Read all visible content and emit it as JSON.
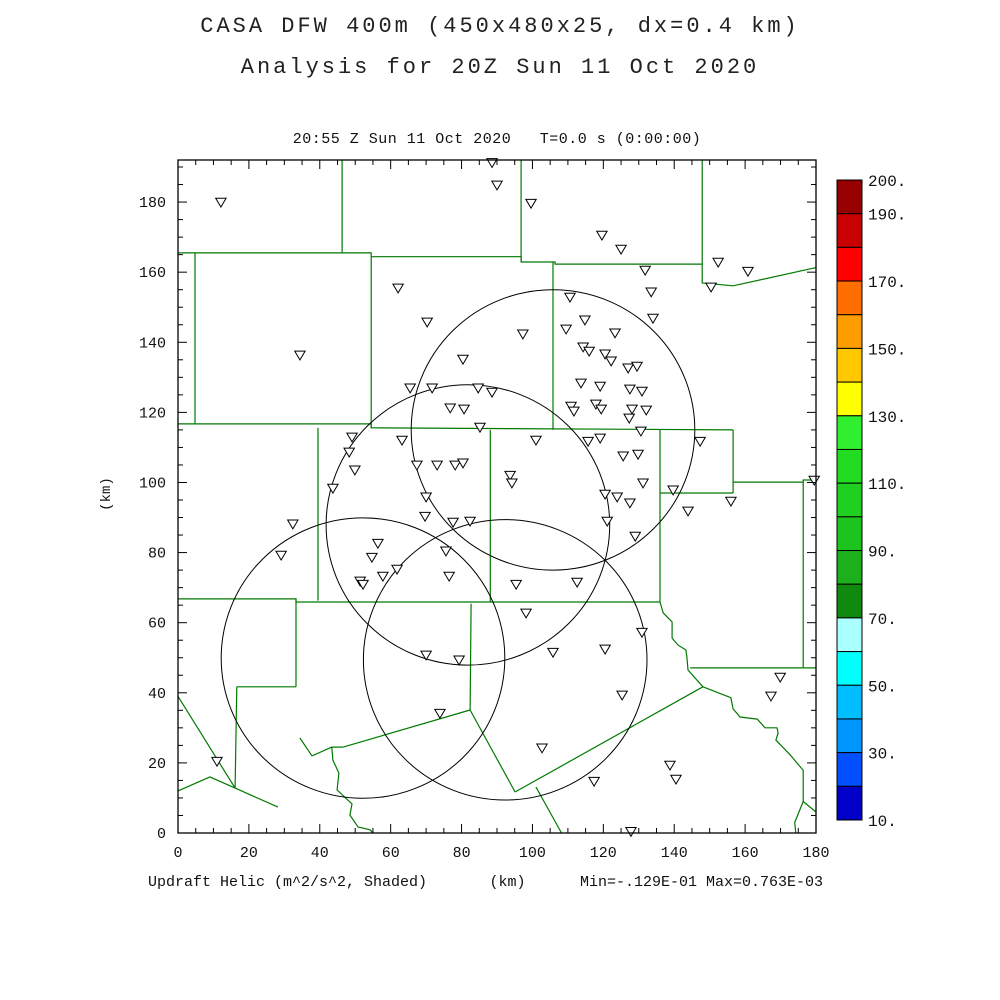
{
  "header": {
    "title_line1": "CASA DFW 400m (450x480x25, dx=0.4 km)",
    "title_line2": "Analysis for 20Z Sun 11 Oct 2020"
  },
  "plot": {
    "subtitle": "20:55 Z Sun 11 Oct 2020   T=0.0 s (0:00:00)",
    "y_axis_title": "(km)",
    "x_axis_title": "(km)",
    "footer_left": "Updraft Helic (m^2/s^2, Shaded)",
    "footer_right": "Min=-.129E-01 Max=0.763E-03"
  },
  "chart_data": {
    "type": "scatter",
    "title": "20:55 Z Sun 11 Oct 2020   T=0.0 s (0:00:00)",
    "xlabel": "(km)",
    "ylabel": "(km)",
    "x_range": [
      0,
      180
    ],
    "y_range": [
      0,
      192
    ],
    "x_ticks": [
      0,
      20,
      40,
      60,
      80,
      100,
      120,
      140,
      160,
      180
    ],
    "y_ticks": [
      0,
      20,
      40,
      60,
      80,
      100,
      120,
      140,
      160,
      180
    ],
    "minor_tick_step": 5,
    "grid": false,
    "field_shaded": "Updraft Helicity (m^2/s^2)",
    "field_min": "-.129E-01",
    "field_max": "0.763E-03",
    "marker_symbol": "open-down-triangle",
    "marker_color": "#000000",
    "markers_km": [
      [
        12.1,
        180.0
      ],
      [
        34.4,
        136.4
      ],
      [
        62.1,
        155.5
      ],
      [
        70.3,
        145.8
      ],
      [
        80.4,
        135.2
      ],
      [
        65.5,
        127.0
      ],
      [
        71.7,
        127.0
      ],
      [
        76.8,
        121.3
      ],
      [
        80.7,
        121.0
      ],
      [
        84.7,
        127.0
      ],
      [
        88.6,
        125.8
      ],
      [
        85.2,
        115.8
      ],
      [
        49.1,
        113.0
      ],
      [
        63.2,
        112.1
      ],
      [
        48.3,
        108.7
      ],
      [
        49.9,
        103.6
      ],
      [
        43.7,
        98.4
      ],
      [
        67.4,
        105.0
      ],
      [
        73.1,
        105.0
      ],
      [
        78.2,
        105.0
      ],
      [
        80.4,
        105.6
      ],
      [
        70.0,
        95.9
      ],
      [
        69.7,
        90.4
      ],
      [
        32.4,
        88.2
      ],
      [
        29.1,
        79.3
      ],
      [
        77.6,
        88.7
      ],
      [
        82.4,
        89.0
      ],
      [
        56.4,
        82.7
      ],
      [
        54.7,
        78.7
      ],
      [
        57.8,
        73.3
      ],
      [
        61.8,
        75.3
      ],
      [
        51.4,
        71.9
      ],
      [
        52.2,
        71.0
      ],
      [
        75.6,
        80.5
      ],
      [
        76.5,
        73.3
      ],
      [
        70.0,
        50.8
      ],
      [
        79.3,
        49.4
      ],
      [
        73.9,
        34.2
      ],
      [
        11.0,
        20.5
      ],
      [
        88.6,
        191.3
      ],
      [
        90.0,
        184.9
      ],
      [
        99.6,
        179.7
      ],
      [
        119.6,
        170.6
      ],
      [
        125.0,
        166.6
      ],
      [
        131.8,
        160.6
      ],
      [
        152.4,
        162.9
      ],
      [
        160.8,
        160.3
      ],
      [
        150.4,
        155.8
      ],
      [
        133.5,
        154.4
      ],
      [
        134.0,
        146.9
      ],
      [
        110.6,
        152.9
      ],
      [
        97.3,
        142.4
      ],
      [
        109.5,
        143.8
      ],
      [
        114.8,
        146.4
      ],
      [
        123.3,
        142.7
      ],
      [
        114.3,
        138.7
      ],
      [
        116.0,
        137.5
      ],
      [
        120.5,
        136.7
      ],
      [
        122.2,
        134.7
      ],
      [
        127.0,
        132.7
      ],
      [
        129.5,
        133.2
      ],
      [
        113.7,
        128.4
      ],
      [
        119.1,
        127.5
      ],
      [
        127.5,
        126.7
      ],
      [
        130.9,
        126.1
      ],
      [
        110.9,
        121.8
      ],
      [
        111.7,
        120.4
      ],
      [
        117.9,
        122.4
      ],
      [
        119.4,
        121.0
      ],
      [
        128.1,
        121.0
      ],
      [
        132.1,
        120.7
      ],
      [
        127.3,
        118.4
      ],
      [
        130.6,
        114.7
      ],
      [
        101.0,
        112.1
      ],
      [
        115.7,
        111.8
      ],
      [
        119.1,
        112.7
      ],
      [
        125.6,
        107.6
      ],
      [
        129.8,
        108.1
      ],
      [
        147.3,
        111.8
      ],
      [
        131.2,
        99.9
      ],
      [
        139.7,
        97.9
      ],
      [
        93.7,
        102.1
      ],
      [
        94.2,
        99.9
      ],
      [
        120.5,
        96.7
      ],
      [
        123.9,
        95.9
      ],
      [
        127.5,
        94.2
      ],
      [
        143.9,
        91.9
      ],
      [
        156.0,
        94.7
      ],
      [
        121.1,
        89.0
      ],
      [
        129.0,
        84.7
      ],
      [
        95.4,
        71.0
      ],
      [
        112.6,
        71.6
      ],
      [
        98.2,
        62.8
      ],
      [
        130.9,
        57.3
      ],
      [
        120.5,
        52.5
      ],
      [
        105.8,
        51.6
      ],
      [
        125.3,
        39.4
      ],
      [
        169.9,
        44.5
      ],
      [
        167.3,
        39.1
      ],
      [
        102.7,
        24.3
      ],
      [
        138.8,
        19.4
      ],
      [
        140.5,
        15.4
      ],
      [
        117.4,
        14.8
      ],
      [
        127.8,
        0.5
      ],
      [
        179.5,
        100.7
      ]
    ],
    "range_rings": {
      "radius_km": 40,
      "color": "#000000",
      "centers_km": [
        [
          105.8,
          115.0
        ],
        [
          81.8,
          87.9
        ],
        [
          52.2,
          49.9
        ],
        [
          92.3,
          49.4
        ]
      ]
    },
    "boundaries_color": "#007A00",
    "boundaries_km": [
      [
        [
          0,
          165.5
        ],
        [
          54.5,
          165.5
        ],
        [
          54.5,
          164.4
        ],
        [
          96.8,
          164.4
        ],
        [
          96.8,
          162.9
        ],
        [
          106.4,
          162.9
        ],
        [
          106.4,
          162.3
        ],
        [
          147.9,
          162.3
        ]
      ],
      [
        [
          46.3,
          192
        ],
        [
          46.3,
          165.5
        ]
      ],
      [
        [
          96.8,
          192
        ],
        [
          96.8,
          162.9
        ]
      ],
      [
        [
          147.9,
          192
        ],
        [
          147.9,
          156.9
        ],
        [
          156.6,
          156.1
        ],
        [
          180,
          161.3
        ]
      ],
      [
        [
          4.8,
          165.5
        ],
        [
          4.8,
          116.7
        ]
      ],
      [
        [
          54.5,
          164.4
        ],
        [
          54.5,
          115.6
        ]
      ],
      [
        [
          0,
          116.7
        ],
        [
          54.5,
          116.7
        ],
        [
          54.5,
          115.6
        ],
        [
          156.6,
          115.0
        ]
      ],
      [
        [
          88.1,
          115.0
        ],
        [
          88.1,
          65.9
        ]
      ],
      [
        [
          105.8,
          162.9
        ],
        [
          105.8,
          115.0
        ]
      ],
      [
        [
          136.0,
          115.0
        ],
        [
          136.0,
          65.9
        ]
      ],
      [
        [
          136.0,
          97.0
        ],
        [
          156.6,
          97.0
        ]
      ],
      [
        [
          156.6,
          115.0
        ],
        [
          156.6,
          97.0
        ]
      ],
      [
        [
          156.6,
          100.1
        ],
        [
          176.4,
          100.1
        ],
        [
          176.4,
          100.7
        ],
        [
          180,
          100.7
        ]
      ],
      [
        [
          176.4,
          100.1
        ],
        [
          176.4,
          47.1
        ]
      ],
      [
        [
          144.5,
          47.1
        ],
        [
          180,
          47.1
        ]
      ],
      [
        [
          136.0,
          65.9
        ],
        [
          136.9,
          62.8
        ],
        [
          139.4,
          60.2
        ],
        [
          139.4,
          55.6
        ],
        [
          141.1,
          53.6
        ],
        [
          143.3,
          52.2
        ],
        [
          143.6,
          49.9
        ],
        [
          143.9,
          46.5
        ],
        [
          148.1,
          41.7
        ]
      ],
      [
        [
          148.1,
          41.7
        ],
        [
          156.0,
          38.6
        ],
        [
          156.6,
          35.4
        ],
        [
          158.6,
          33.1
        ],
        [
          163.4,
          32.5
        ],
        [
          165.6,
          30.0
        ],
        [
          169.0,
          30.0
        ],
        [
          169.3,
          28.5
        ],
        [
          168.7,
          26.5
        ],
        [
          172.7,
          22.3
        ],
        [
          176.4,
          17.9
        ],
        [
          176.4,
          9.0
        ],
        [
          174.0,
          3.0
        ],
        [
          174.3,
          0
        ]
      ],
      [
        [
          176.4,
          9.0
        ],
        [
          180,
          6.0
        ]
      ],
      [
        [
          82.4,
          35.1
        ],
        [
          95.1,
          11.7
        ]
      ],
      [
        [
          95.1,
          11.7
        ],
        [
          148.1,
          41.7
        ]
      ],
      [
        [
          101.0,
          13.1
        ],
        [
          108.2,
          0
        ]
      ],
      [
        [
          82.7,
          65.4
        ],
        [
          82.4,
          35.1
        ]
      ],
      [
        [
          0,
          66.8
        ],
        [
          33.3,
          66.8
        ],
        [
          33.3,
          65.9
        ],
        [
          136.0,
          65.9
        ]
      ],
      [
        [
          39.5,
          115.6
        ],
        [
          39.5,
          66.3
        ]
      ],
      [
        [
          33.3,
          66.8
        ],
        [
          33.3,
          41.7
        ]
      ],
      [
        [
          16.6,
          41.7
        ],
        [
          33.3,
          41.7
        ]
      ],
      [
        [
          0,
          39.0
        ],
        [
          16.1,
          12.8
        ]
      ],
      [
        [
          0,
          12.0
        ],
        [
          9.0,
          16.0
        ],
        [
          16.1,
          12.8
        ]
      ],
      [
        [
          16.6,
          41.7
        ],
        [
          16.1,
          12.8
        ]
      ],
      [
        [
          16.1,
          12.8
        ],
        [
          28.2,
          7.4
        ]
      ],
      [
        [
          46.6,
          24.5
        ],
        [
          82.4,
          35.1
        ]
      ],
      [
        [
          46.6,
          24.5
        ],
        [
          43.4,
          24.5
        ],
        [
          43.7,
          20.8
        ],
        [
          45.4,
          17.1
        ],
        [
          44.9,
          12.3
        ],
        [
          49.1,
          8.3
        ],
        [
          48.5,
          5.1
        ],
        [
          50.8,
          1.7
        ],
        [
          54.2,
          0.9
        ],
        [
          55.0,
          0
        ]
      ],
      [
        [
          34.4,
          27.1
        ],
        [
          37.8,
          22.0
        ],
        [
          43.4,
          24.5
        ]
      ]
    ],
    "colorbar": {
      "min": 10,
      "max": 200,
      "tick_labels": [
        {
          "value": 200,
          "label": "200."
        },
        {
          "value": 190,
          "label": "190."
        },
        {
          "value": 170,
          "label": "170."
        },
        {
          "value": 150,
          "label": "150."
        },
        {
          "value": 130,
          "label": "130."
        },
        {
          "value": 110,
          "label": "110."
        },
        {
          "value": 90,
          "label": "90."
        },
        {
          "value": 70,
          "label": "70."
        },
        {
          "value": 50,
          "label": "50."
        },
        {
          "value": 30,
          "label": "30."
        },
        {
          "value": 10,
          "label": "10."
        }
      ],
      "cell_colors_top_to_bottom": [
        "#960000",
        "#C80000",
        "#FF0000",
        "#FF6E00",
        "#FF9C00",
        "#FFC800",
        "#FFFF00",
        "#2FEF2F",
        "#22DC22",
        "#20D020",
        "#1EC41E",
        "#1CB01C",
        "#0F8A0F",
        "#AAFFFF",
        "#00FFFF",
        "#00BEFF",
        "#0096FF",
        "#0050FF",
        "#0000C8"
      ]
    }
  }
}
